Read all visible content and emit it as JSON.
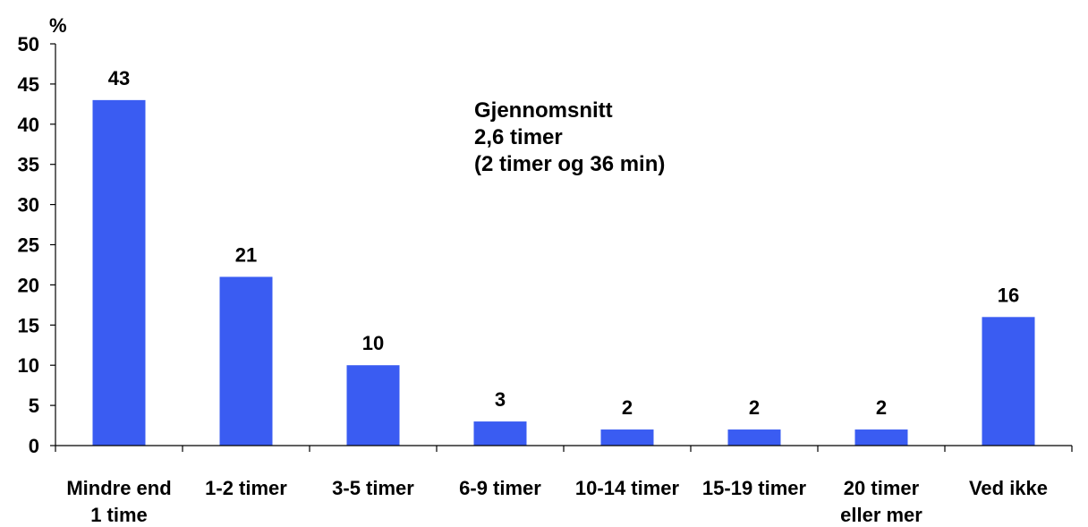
{
  "chart_data": {
    "type": "bar",
    "ylabel": "%",
    "ylim": [
      0,
      50
    ],
    "yticks": [
      0,
      5,
      10,
      15,
      20,
      25,
      30,
      35,
      40,
      45,
      50
    ],
    "grid": false,
    "categories": [
      [
        "Mindre end",
        "1 time"
      ],
      [
        "1-2 timer"
      ],
      [
        "3-5 timer"
      ],
      [
        "6-9 timer"
      ],
      [
        "10-14 timer"
      ],
      [
        "15-19 timer"
      ],
      [
        "20 timer",
        "eller mer"
      ],
      [
        "Ved ikke"
      ]
    ],
    "values": [
      43,
      21,
      10,
      3,
      2,
      2,
      2,
      16
    ],
    "bar_color": "#3a5cf2",
    "annotation": [
      "Gjennomsnitt",
      "2,6 timer",
      "(2 timer og 36 min)"
    ]
  }
}
